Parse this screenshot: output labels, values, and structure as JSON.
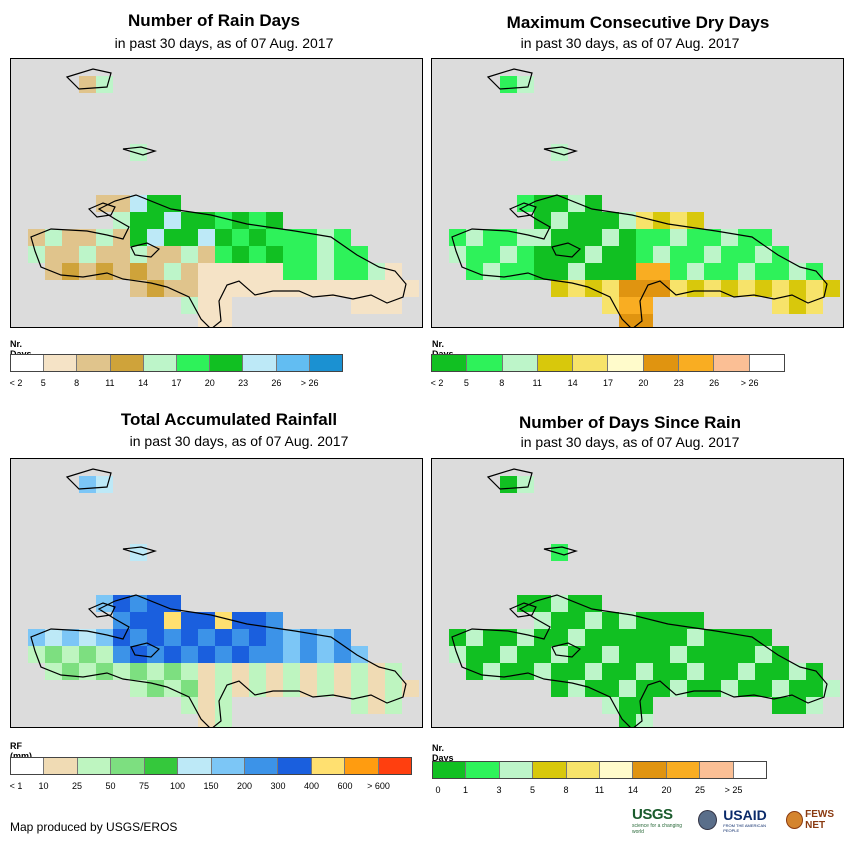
{
  "shared": {
    "subtitle": "in past 30 days, as of 07 Aug. 2017",
    "no_data_color": "#dcdcdc",
    "coast_color": "#000000"
  },
  "panels": {
    "rain_days": {
      "title": "Number of Rain Days",
      "legend_title": "Nr. Days",
      "legend_colors": [
        "#ffffff",
        "#f5e3c6",
        "#e0c48c",
        "#cfa33a",
        "#bdf5c9",
        "#2ef25a",
        "#11c022",
        "#bde9f7",
        "#62bdf2",
        "#1b91d2"
      ],
      "legend_labels": [
        "< 2",
        "5",
        "8",
        "11",
        "14",
        "17",
        "20",
        "23",
        "26",
        "> 26"
      ]
    },
    "dry_days": {
      "title": "Maximum Consecutive Dry Days",
      "legend_title": "Nr. Days",
      "legend_colors": [
        "#11c022",
        "#2ef25a",
        "#bdf5c9",
        "#d8c80c",
        "#f7e36a",
        "#fffbcb",
        "#e09410",
        "#f9ad22",
        "#fbbf95",
        "#ffffff"
      ],
      "legend_labels": [
        "< 2",
        "5",
        "8",
        "11",
        "14",
        "17",
        "20",
        "23",
        "26",
        "> 26"
      ]
    },
    "rainfall": {
      "title": "Total Accumulated Rainfall",
      "legend_title": "RF (mm)",
      "legend_colors": [
        "#ffffff",
        "#f0dbb4",
        "#bef5c0",
        "#7ddf80",
        "#35c83c",
        "#bde9f7",
        "#7cc6f6",
        "#3c93e8",
        "#1a5fde",
        "#ffe070",
        "#ff9c10",
        "#ff3f0f"
      ],
      "legend_labels": [
        "< 1",
        "10",
        "25",
        "50",
        "75",
        "100",
        "150",
        "200",
        "300",
        "400",
        "600",
        "> 600"
      ]
    },
    "since_rain": {
      "title": "Number of Days Since Rain",
      "legend_title": "Nr. Days",
      "legend_colors": [
        "#11c022",
        "#2ef25a",
        "#bdf5c9",
        "#d8c80c",
        "#f7e36a",
        "#fffbcb",
        "#e09410",
        "#f9ad22",
        "#fbbf95",
        "#ffffff"
      ],
      "legend_labels": [
        "0",
        "1",
        "3",
        "5",
        "8",
        "11",
        "14",
        "20",
        "25",
        "> 25"
      ]
    }
  },
  "footer": {
    "credit": "Map produced by USGS/EROS",
    "logo_usgs": "USGS",
    "logo_usgs_tagline": "science for a changing world",
    "logo_usaid": "USAID",
    "logo_usaid_tagline": "FROM THE AMERICAN PEOPLE",
    "logo_fews": "FEWS NET"
  }
}
